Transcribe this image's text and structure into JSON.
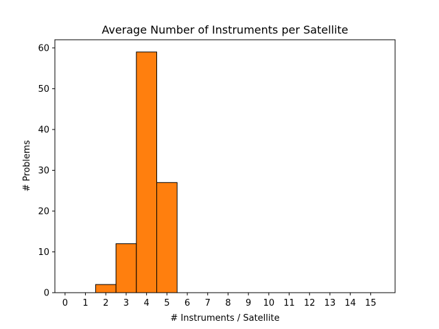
{
  "chart_data": {
    "type": "bar",
    "title": "Average Number of Instruments per Satellite",
    "xlabel": "# Instruments / Satellite",
    "ylabel": "# Problems",
    "x_ticks": [
      0,
      1,
      2,
      3,
      4,
      5,
      6,
      7,
      8,
      9,
      10,
      11,
      12,
      13,
      14,
      15
    ],
    "y_ticks": [
      0,
      10,
      20,
      30,
      40,
      50,
      60
    ],
    "xlim": [
      -0.5,
      16.2
    ],
    "ylim": [
      0,
      62
    ],
    "bin_width": 1,
    "bins": [
      1,
      2,
      3,
      4,
      5,
      6,
      7,
      8,
      9,
      10,
      11,
      12,
      13,
      14,
      15
    ],
    "values": [
      0,
      2,
      12,
      59,
      27,
      0,
      0,
      0,
      0,
      0,
      0,
      0,
      0,
      0,
      0
    ],
    "bar_color": "#ff7f0e",
    "edge_color": "#000000",
    "grid": false,
    "legend": "none"
  }
}
